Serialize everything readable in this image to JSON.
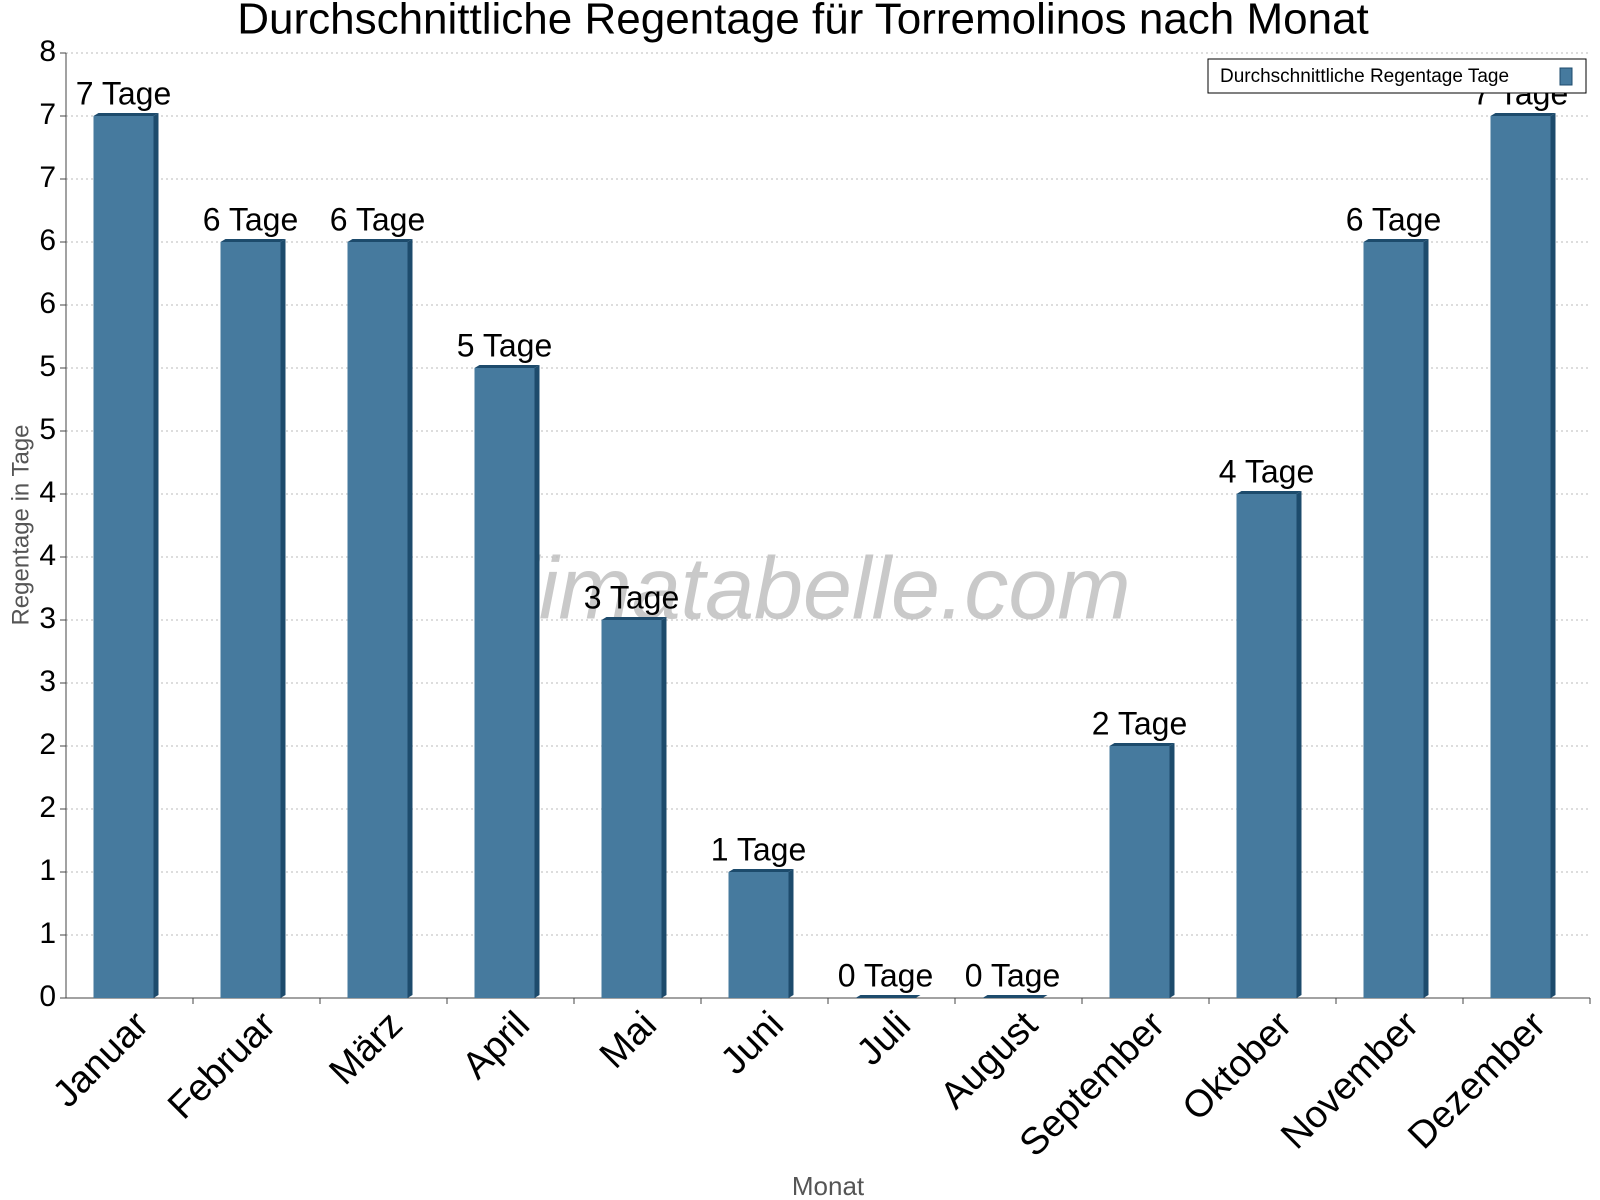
{
  "chart_data": {
    "type": "bar",
    "title": "Durchschnittliche Regentage für Torremolinos nach Monat",
    "x_label": "Monat",
    "y_label": "Regentage in Tage",
    "watermark": "klimatabelle.com",
    "categories": [
      "Januar",
      "Februar",
      "März",
      "April",
      "Mai",
      "Juni",
      "Juli",
      "August",
      "September",
      "Oktober",
      "November",
      "Dezember"
    ],
    "series": [
      {
        "name": "Durchschnittliche Regentage Tage",
        "color": "#467a9e",
        "values": [
          7,
          6,
          6,
          5,
          3,
          1,
          0,
          0,
          2,
          4,
          6,
          7
        ],
        "value_labels": [
          "7 Tage",
          "6 Tage",
          "6 Tage",
          "5 Tage",
          "3 Tage",
          "1 Tage",
          "0 Tage",
          "0 Tage",
          "2 Tage",
          "4 Tage",
          "6 Tage",
          "7 Tage"
        ]
      }
    ],
    "ylim": [
      0,
      7.5
    ],
    "yticks": [
      0,
      {
        "value": 0.5,
        "label": "1"
      },
      1,
      {
        "value": 1.5,
        "label": "2"
      },
      2,
      {
        "value": 2.5,
        "label": "3"
      },
      3,
      {
        "value": 3.5,
        "label": "4"
      },
      4,
      {
        "value": 4.5,
        "label": "5"
      },
      5,
      {
        "value": 5.5,
        "label": "6"
      },
      6,
      {
        "value": 6.5,
        "label": "7"
      },
      7,
      {
        "value": 7.5,
        "label": "8"
      }
    ],
    "grid": true,
    "legend": "top-right"
  }
}
